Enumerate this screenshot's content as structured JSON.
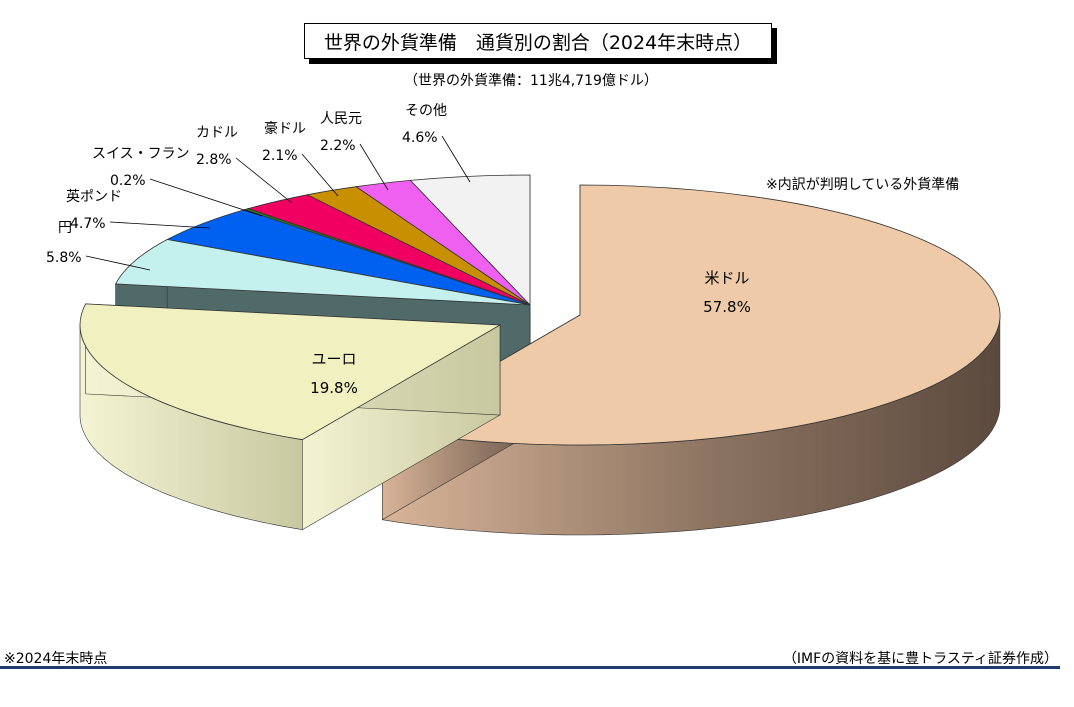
{
  "title": "世界の外貨準備　通貨別の割合（2024年末時点）",
  "subtitle": "（世界の外貨準備：11兆4,719億ドル）",
  "note": "※内訳が判明している外貨準備",
  "footnote": "※2024年末時点",
  "source": "（IMFの資料を基に豊トラスティ証券作成）",
  "chart_data": {
    "type": "pie",
    "title": "世界の外貨準備　通貨別の割合（2024年末時点）",
    "unit": "%",
    "slices": [
      {
        "label": "米ドル",
        "value": 57.8,
        "value_label": "57.8%",
        "color": "#efcaa8"
      },
      {
        "label": "ユーロ",
        "value": 19.8,
        "value_label": "19.8%",
        "color": "#f0f0c0"
      },
      {
        "label": "円",
        "value": 5.8,
        "value_label": "5.8%",
        "color": "#c4f0ee"
      },
      {
        "label": "英ポンド",
        "value": 4.7,
        "value_label": "4.7%",
        "color": "#0060f0"
      },
      {
        "label": "スイス・フラン",
        "value": 0.2,
        "value_label": "0.2%",
        "color": "#208020"
      },
      {
        "label": "カドル",
        "value": 2.8,
        "value_label": "2.8%",
        "color": "#f00060"
      },
      {
        "label": "豪ドル",
        "value": 2.1,
        "value_label": "2.1%",
        "color": "#c89000"
      },
      {
        "label": "人民元",
        "value": 2.2,
        "value_label": "2.2%",
        "color": "#f060f0"
      },
      {
        "label": "その他",
        "value": 4.6,
        "value_label": "4.6%",
        "color": "#f2f2f2"
      }
    ]
  }
}
